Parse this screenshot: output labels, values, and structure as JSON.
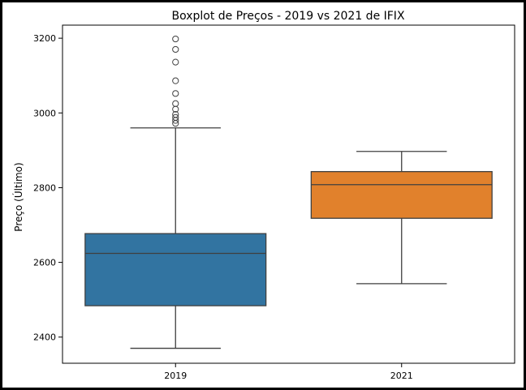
{
  "chart_data": {
    "type": "boxplot",
    "title": "Boxplot de Preços - 2019 vs 2021 de IFIX",
    "xlabel": "",
    "ylabel": "Preço (Último)",
    "ylim": [
      2330,
      3235
    ],
    "yticks": [
      2400,
      2600,
      2800,
      3000,
      3200
    ],
    "categories": [
      "2019",
      "2021"
    ],
    "boxes": [
      {
        "category": "2019",
        "color": "#3274a1",
        "whisker_low": 2370,
        "q1": 2484,
        "median": 2624,
        "q3": 2677,
        "whisker_high": 2960,
        "outliers": [
          2972,
          2980,
          2988,
          2996,
          3010,
          3025,
          3052,
          3086,
          3136,
          3170,
          3198
        ]
      },
      {
        "category": "2021",
        "color": "#e1812c",
        "whisker_low": 2543,
        "q1": 2718,
        "median": 2808,
        "q3": 2843,
        "whisker_high": 2897,
        "outliers": []
      }
    ],
    "grid": false,
    "legend": "none"
  }
}
